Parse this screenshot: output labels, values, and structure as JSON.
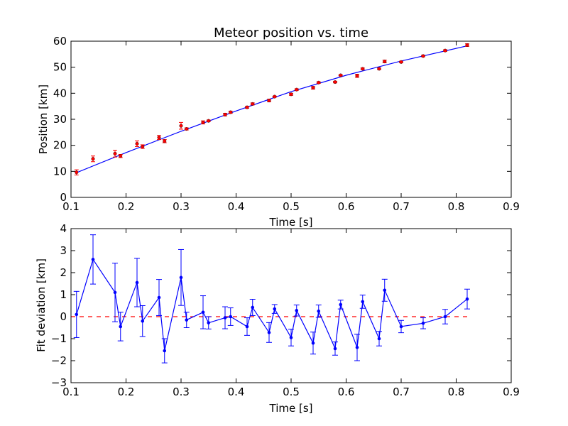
{
  "chart_data": [
    {
      "type": "scatter",
      "title": "Meteor position vs. time",
      "xlabel": "Time [s]",
      "ylabel": "Position [km]",
      "xlim": [
        0.1,
        0.9
      ],
      "ylim": [
        0,
        60
      ],
      "xticks": [
        "0.1",
        "0.2",
        "0.3",
        "0.4",
        "0.5",
        "0.6",
        "0.7",
        "0.8",
        "0.9"
      ],
      "yticks": [
        "0",
        "10",
        "20",
        "30",
        "40",
        "50",
        "60"
      ],
      "grid": false,
      "colors": {
        "points": "#ff0000",
        "fit": "#0000ff"
      },
      "series": [
        {
          "kind": "points-with-errorbars",
          "x": [
            0.11,
            0.14,
            0.18,
            0.19,
            0.22,
            0.23,
            0.26,
            0.27,
            0.3,
            0.31,
            0.34,
            0.35,
            0.38,
            0.39,
            0.42,
            0.43,
            0.46,
            0.47,
            0.5,
            0.51,
            0.54,
            0.55,
            0.58,
            0.59,
            0.62,
            0.63,
            0.66,
            0.67,
            0.7,
            0.74,
            0.78,
            0.82
          ],
          "y": [
            9.6,
            14.8,
            16.8,
            15.9,
            20.6,
            19.5,
            23.0,
            21.6,
            27.5,
            26.3,
            28.8,
            29.4,
            31.8,
            32.7,
            34.6,
            35.9,
            37.2,
            38.7,
            39.6,
            41.4,
            42.1,
            44.1,
            44.3,
            46.9,
            46.7,
            49.4,
            49.4,
            52.2,
            52.0,
            54.3,
            56.4,
            58.5
          ],
          "yerr": [
            1.0,
            1.1,
            1.3,
            0.6,
            1.1,
            0.7,
            0.8,
            0.6,
            1.3,
            0.4,
            0.6,
            0.3,
            0.5,
            0.4,
            0.4,
            0.4,
            0.5,
            0.2,
            0.4,
            0.3,
            0.5,
            0.3,
            0.3,
            0.2,
            0.6,
            0.3,
            0.3,
            0.5,
            0.3,
            0.3,
            0.3,
            0.5
          ]
        },
        {
          "kind": "fit-line",
          "x": [
            0.11,
            0.2,
            0.3,
            0.4,
            0.5,
            0.6,
            0.7,
            0.82
          ],
          "y": [
            9.5,
            17.2,
            25.4,
            33.2,
            40.6,
            46.9,
            52.4,
            58.2
          ]
        }
      ]
    },
    {
      "type": "line",
      "title": "",
      "xlabel": "Time [s]",
      "ylabel": "Fit deviation [km]",
      "xlim": [
        0.1,
        0.9
      ],
      "ylim": [
        -3,
        4
      ],
      "xticks": [
        "0.1",
        "0.2",
        "0.3",
        "0.4",
        "0.5",
        "0.6",
        "0.7",
        "0.8",
        "0.9"
      ],
      "yticks": [
        "−3",
        "−2",
        "−1",
        "0",
        "1",
        "2",
        "3",
        "4"
      ],
      "grid": false,
      "colors": {
        "line": "#0000ff",
        "zero_line": "#ff0000"
      },
      "zero_line": {
        "y": 0,
        "x_range": [
          0.1,
          0.82
        ],
        "style": "dashed"
      },
      "series": [
        {
          "kind": "line-with-errorbars",
          "x": [
            0.11,
            0.14,
            0.18,
            0.19,
            0.22,
            0.23,
            0.26,
            0.27,
            0.3,
            0.31,
            0.34,
            0.35,
            0.38,
            0.39,
            0.42,
            0.43,
            0.46,
            0.47,
            0.5,
            0.51,
            0.54,
            0.55,
            0.58,
            0.59,
            0.62,
            0.63,
            0.66,
            0.67,
            0.7,
            0.74,
            0.78,
            0.82
          ],
          "y": [
            0.1,
            2.6,
            1.1,
            -0.45,
            1.55,
            -0.2,
            0.87,
            -1.55,
            1.78,
            -0.15,
            0.2,
            -0.28,
            -0.05,
            0.0,
            -0.45,
            0.42,
            -0.72,
            0.35,
            -0.95,
            0.28,
            -1.2,
            0.25,
            -1.45,
            0.55,
            -1.4,
            0.68,
            -1.0,
            1.2,
            -0.45,
            -0.3,
            0.0,
            0.8
          ],
          "yerr": [
            1.05,
            1.12,
            1.33,
            0.65,
            1.1,
            0.7,
            0.82,
            0.55,
            1.27,
            0.35,
            0.75,
            0.28,
            0.5,
            0.4,
            0.4,
            0.37,
            0.45,
            0.2,
            0.38,
            0.25,
            0.5,
            0.28,
            0.3,
            0.2,
            0.6,
            0.3,
            0.33,
            0.5,
            0.28,
            0.25,
            0.33,
            0.45
          ]
        }
      ]
    }
  ]
}
